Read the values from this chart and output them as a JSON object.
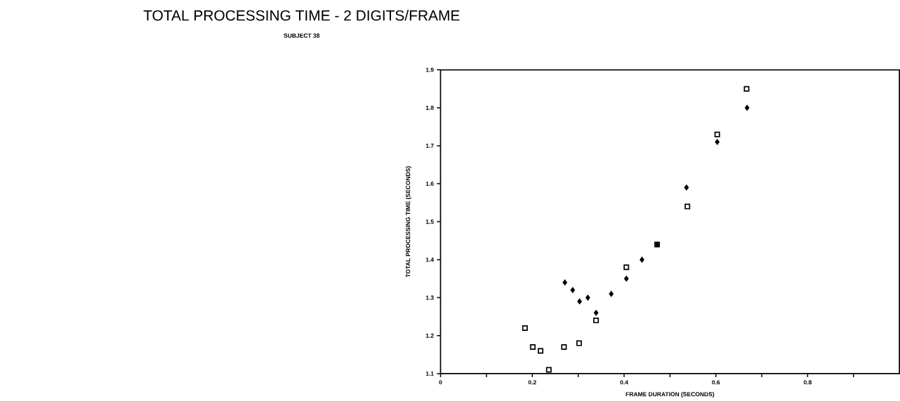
{
  "chart_data": {
    "type": "scatter",
    "title": "TOTAL PROCESSING TIME - 2 DIGITS/FRAME",
    "subtitle": "SUBJECT 38",
    "xlabel": "FRAME DURATION (SECONDS)",
    "ylabel": "TOTAL PROCESSING TIME (SECONDS)",
    "xlim": [
      0,
      1.0
    ],
    "ylim": [
      1.1,
      1.9
    ],
    "xticks": [
      0,
      {
        "value": 0.1,
        "label": null
      },
      0.2,
      {
        "value": 0.3,
        "label": null
      },
      0.4,
      {
        "value": 0.5,
        "label": null
      },
      0.6,
      {
        "value": 0.7,
        "label": null
      },
      0.8,
      {
        "value": 0.9,
        "label": null
      }
    ],
    "yticks": [
      1.1,
      1.2,
      1.3,
      1.4,
      1.5,
      1.6,
      1.7,
      1.8,
      1.9
    ],
    "grid": false,
    "series": [
      {
        "color": "#000000",
        "marker": "square",
        "x": [
          0.184,
          0.201,
          0.218,
          0.236,
          0.269,
          0.302,
          0.339,
          0.405,
          0.472,
          0.538,
          0.603,
          0.667
        ],
        "values": [
          1.22,
          1.17,
          1.16,
          1.11,
          1.17,
          1.18,
          1.24,
          1.38,
          1.44,
          1.54,
          1.73,
          1.85
        ]
      },
      {
        "color": "#000000",
        "marker": "diamond",
        "x": [
          0.271,
          0.288,
          0.303,
          0.321,
          0.339,
          0.372,
          0.405,
          0.439,
          0.472,
          0.536,
          0.603,
          0.668
        ],
        "values": [
          1.34,
          1.32,
          1.29,
          1.3,
          1.26,
          1.31,
          1.35,
          1.4,
          1.44,
          1.59,
          1.71,
          1.8
        ]
      }
    ]
  }
}
